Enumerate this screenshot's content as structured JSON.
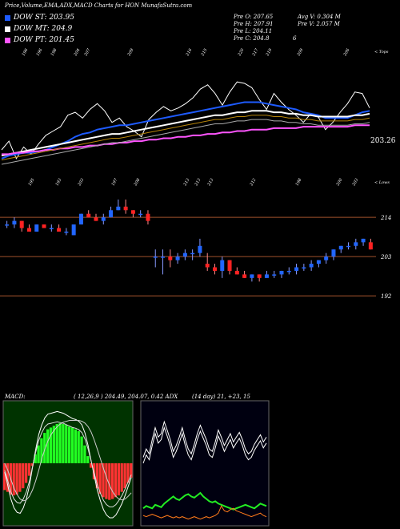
{
  "header": {
    "title": "Price,Volume,EMA,ADX,MACD Charts for HON  MunafaSutra.com"
  },
  "legend": [
    {
      "label": "DOW ST: 203.95",
      "color": "#1e5bff"
    },
    {
      "label": "DOW MT: 204.9",
      "color": "#ffffff"
    },
    {
      "label": "DOW PT: 201.45",
      "color": "#ff55ff"
    }
  ],
  "ohlc": {
    "open": "Pre  O: 207.65",
    "high": "Pre  H: 207.91",
    "low": "Pre  L: 204.11",
    "close": "Pre  C: 204.8",
    "avg_volume": "Avg V: 0.304  M",
    "prev_volume": "Pre  V: 2.057 M",
    "extra": "6"
  },
  "chart_data": [
    {
      "type": "line",
      "name": "ema-panel",
      "top_axis_label": "< Tops",
      "bottom_axis_label": "< Lows",
      "last_value_label": "203.26",
      "top_ticks": [
        "196",
        "196",
        "198",
        "204",
        "207",
        "209",
        "216",
        "215",
        "220",
        "217",
        "219",
        "209",
        "206"
      ],
      "bottom_ticks": [
        "195",
        "193",
        "203",
        "197",
        "208",
        "213",
        "213",
        "213",
        "212",
        "198",
        "200",
        "203"
      ],
      "series": [
        {
          "name": "Price",
          "color": "#ffffff",
          "values": [
            186,
            192,
            180,
            188,
            183,
            190,
            196,
            199,
            202,
            210,
            212,
            208,
            214,
            218,
            213,
            205,
            208,
            202,
            199,
            195,
            207,
            212,
            216,
            213,
            215,
            218,
            222,
            228,
            231,
            225,
            217,
            226,
            233,
            232,
            229,
            221,
            214,
            225,
            219,
            214,
            210,
            205,
            211,
            209,
            200,
            205,
            212,
            218,
            226,
            225,
            215
          ]
        },
        {
          "name": "EMA fast",
          "color": "#1e5bff",
          "values": [
            180,
            182,
            183,
            184,
            184,
            185,
            186,
            188,
            190,
            192,
            195,
            197,
            198,
            200,
            201,
            202,
            203,
            203,
            204,
            205,
            206,
            207,
            208,
            209,
            210,
            211,
            212,
            213,
            214,
            215,
            216,
            217,
            218,
            219,
            219,
            219,
            218,
            217,
            216,
            215,
            214,
            212,
            211,
            210,
            208,
            208,
            208,
            208,
            210,
            212,
            213
          ]
        },
        {
          "name": "EMA mid",
          "color": "#ffffff",
          "values": [
            182,
            183,
            184,
            185,
            186,
            187,
            188,
            189,
            190,
            191,
            192,
            193,
            194,
            195,
            196,
            197,
            197,
            198,
            199,
            200,
            201,
            202,
            203,
            204,
            205,
            206,
            207,
            208,
            209,
            210,
            210,
            211,
            212,
            212,
            213,
            213,
            213,
            212,
            212,
            211,
            211,
            210,
            210,
            209,
            209,
            209,
            209,
            209,
            210,
            210,
            211
          ]
        },
        {
          "name": "EMA slow",
          "color": "#ff55ff",
          "values": [
            183,
            183,
            184,
            184,
            185,
            185,
            186,
            186,
            187,
            187,
            188,
            188,
            189,
            189,
            190,
            190,
            191,
            191,
            192,
            192,
            193,
            193,
            194,
            194,
            195,
            195,
            196,
            196,
            197,
            197,
            198,
            198,
            199,
            199,
            200,
            200,
            200,
            201,
            201,
            201,
            201,
            202,
            202,
            202,
            202,
            202,
            202,
            202,
            203,
            203,
            203
          ]
        }
      ]
    },
    {
      "type": "candlestick",
      "name": "price-panel",
      "y_ticks": [
        "214",
        "203",
        "192"
      ],
      "candles": [
        [
          212,
          213,
          211,
          212
        ],
        [
          212,
          214,
          211,
          213
        ],
        [
          213,
          213,
          210,
          211
        ],
        [
          211,
          212,
          210,
          210
        ],
        [
          210,
          212,
          210,
          212
        ],
        [
          212,
          212,
          211,
          211
        ],
        [
          211,
          212,
          210,
          211
        ],
        [
          211,
          212,
          210,
          210
        ],
        [
          210,
          211,
          209,
          210
        ],
        [
          209,
          212,
          209,
          212
        ],
        [
          212,
          215,
          212,
          215
        ],
        [
          215,
          216,
          214,
          214
        ],
        [
          214,
          215,
          213,
          213
        ],
        [
          213,
          215,
          212,
          214
        ],
        [
          214,
          217,
          214,
          216
        ],
        [
          216,
          219,
          216,
          217
        ],
        [
          217,
          219,
          215,
          216
        ],
        [
          216,
          216,
          214,
          215
        ],
        [
          215,
          216,
          214,
          215
        ],
        [
          215,
          216,
          212,
          213
        ],
        [
          203,
          205,
          200,
          203
        ],
        [
          203,
          205,
          198,
          203
        ],
        [
          203,
          205,
          200,
          202
        ],
        [
          202,
          204,
          201,
          203
        ],
        [
          203,
          205,
          202,
          204
        ],
        [
          204,
          205,
          202,
          204
        ],
        [
          204,
          208,
          203,
          206
        ],
        [
          201,
          204,
          199,
          200
        ],
        [
          200,
          201,
          198,
          199
        ],
        [
          199,
          203,
          197,
          202
        ],
        [
          202,
          202,
          198,
          199
        ],
        [
          199,
          200,
          198,
          198
        ],
        [
          198,
          199,
          197,
          197
        ],
        [
          197,
          198,
          196,
          198
        ],
        [
          198,
          198,
          196,
          197
        ],
        [
          197,
          199,
          197,
          198
        ],
        [
          198,
          199,
          197,
          198
        ],
        [
          198,
          199,
          197,
          199
        ],
        [
          199,
          200,
          198,
          199
        ],
        [
          199,
          201,
          198,
          200
        ],
        [
          200,
          201,
          199,
          200
        ],
        [
          200,
          202,
          199,
          201
        ],
        [
          201,
          202,
          200,
          202
        ],
        [
          202,
          204,
          201,
          203
        ],
        [
          203,
          205,
          202,
          205
        ],
        [
          205,
          206,
          204,
          206
        ],
        [
          206,
          207,
          205,
          206
        ],
        [
          206,
          208,
          205,
          207
        ],
        [
          207,
          208,
          206,
          208
        ],
        [
          207,
          208,
          205,
          205
        ]
      ]
    },
    {
      "type": "bar",
      "name": "macd-panel",
      "label": "MACD:",
      "params": "( 12,26,9 ) 204.49,  204.07,  0.42 ADX",
      "histogram": [
        -3,
        -3.2,
        -3.5,
        -3.6,
        -3.5,
        -3.2,
        -2.8,
        -2.2,
        -1.4,
        -0.3,
        1.0,
        2.0,
        2.8,
        3.4,
        3.8,
        4.0,
        4.2,
        4.4,
        4.5,
        4.4,
        4.3,
        4.1,
        4.0,
        3.8,
        3.6,
        3.0,
        2.0,
        0.8,
        -0.5,
        -1.8,
        -2.8,
        -3.4,
        -3.8,
        -4.0,
        -4.1,
        -4.0,
        -3.8,
        -3.6,
        -3.2,
        -2.8,
        -2.2,
        -1.6
      ],
      "macd_line": [
        -1,
        -2.5,
        -4,
        -5,
        -5.5,
        -5.6,
        -5,
        -4,
        -2.5,
        -0.5,
        1.5,
        3.2,
        4.3,
        5.1,
        5.5,
        5.6,
        5.7,
        5.8,
        5.7,
        5.6,
        5.4,
        5.2,
        5.0,
        4.9,
        4.7,
        4.3,
        3.4,
        2.0,
        0.3,
        -1.4,
        -3,
        -4.2,
        -5.2,
        -5.8,
        -6.1,
        -6.1,
        -5.8,
        -5.2,
        -4.5,
        -3.6,
        -2.6,
        -1.6
      ],
      "signal_line": [
        0,
        -0.8,
        -1.8,
        -2.8,
        -3.5,
        -4,
        -4.2,
        -4.1,
        -3.7,
        -3,
        -2,
        -0.8,
        0.5,
        1.6,
        2.5,
        3.2,
        3.7,
        4.1,
        4.4,
        4.6,
        4.7,
        4.8,
        4.8,
        4.8,
        4.8,
        4.7,
        4.5,
        4.1,
        3.5,
        2.6,
        1.6,
        0.5,
        -0.6,
        -1.6,
        -2.5,
        -3.2,
        -3.7,
        -4.0,
        -4.1,
        -4.0,
        -3.7,
        -3.3
      ]
    },
    {
      "type": "line",
      "name": "adx-panel",
      "params": "(14  day) 21,  +23,  15",
      "series": [
        {
          "name": "ADX",
          "color": "#ffffff",
          "values": [
            55,
            62,
            58,
            70,
            80,
            72,
            75,
            85,
            78,
            70,
            60,
            65,
            72,
            80,
            70,
            62,
            58,
            66,
            75,
            82,
            76,
            70,
            62,
            60,
            68,
            78,
            72,
            65,
            70,
            75,
            68,
            72,
            76,
            70,
            62,
            58,
            60,
            66,
            70,
            74,
            68,
            72
          ]
        },
        {
          "name": "+DI",
          "color": "#22ee22",
          "values": [
            12,
            14,
            13,
            12,
            15,
            14,
            13,
            16,
            18,
            20,
            22,
            20,
            19,
            21,
            23,
            24,
            22,
            21,
            23,
            25,
            22,
            20,
            18,
            17,
            18,
            16,
            15,
            14,
            13,
            12,
            11,
            12,
            13,
            14,
            15,
            14,
            13,
            12,
            14,
            16,
            15,
            14
          ]
        },
        {
          "name": "-DI",
          "color": "#ff7a1a",
          "values": [
            6,
            5,
            6,
            7,
            6,
            5,
            4,
            5,
            6,
            5,
            4,
            5,
            4,
            5,
            4,
            3,
            4,
            5,
            4,
            3,
            4,
            5,
            4,
            5,
            6,
            8,
            14,
            10,
            9,
            11,
            12,
            10,
            9,
            8,
            7,
            6,
            5,
            6,
            7,
            8,
            6,
            5
          ]
        }
      ]
    }
  ]
}
